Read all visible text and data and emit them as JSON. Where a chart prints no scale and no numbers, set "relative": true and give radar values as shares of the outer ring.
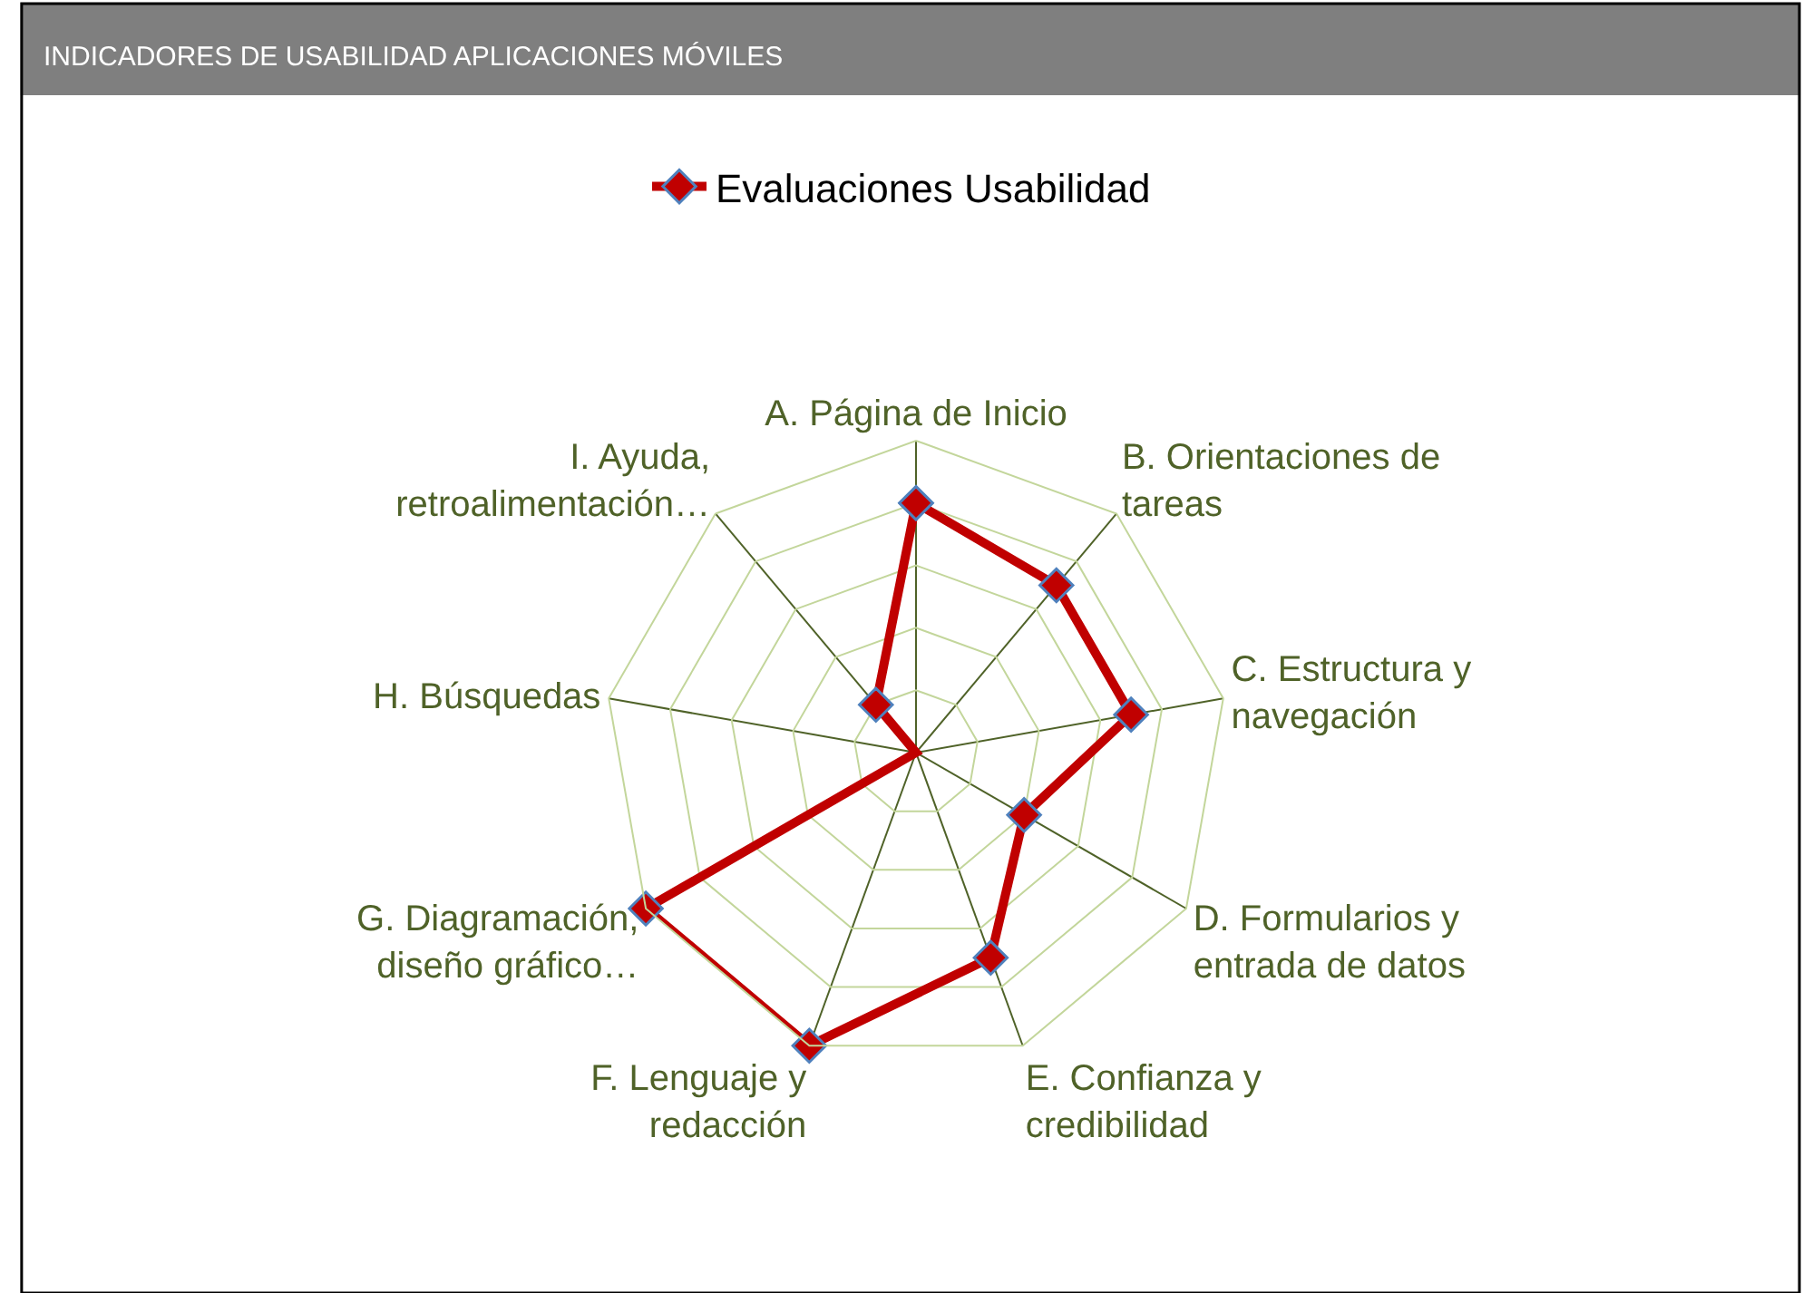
{
  "chart_data": {
    "type": "radar",
    "title": "INDICADORES DE USABILIDAD APLICACIONES MÓVILES",
    "relative": true,
    "grid": true,
    "legend": "top",
    "marker": "diamond",
    "line_style": "solid",
    "categories": [
      "A. Página de Inicio",
      "B. Orientaciones de tareas",
      "C. Estructura y navegación",
      "D. Formularios y entrada de datos",
      "E. Confianza y credibilidad",
      "F. Lenguaje y redacción",
      "G. Diagramación, diseño gráfico…",
      "H. Búsquedas",
      "I. Ayuda, retroalimentación…"
    ],
    "series": [
      {
        "name": "Evaluaciones Usabilidad",
        "color": "#c00000",
        "values": [
          0.8,
          0.7,
          0.7,
          0.4,
          0.7,
          1.0,
          1.0,
          0.0,
          0.2
        ]
      }
    ]
  }
}
